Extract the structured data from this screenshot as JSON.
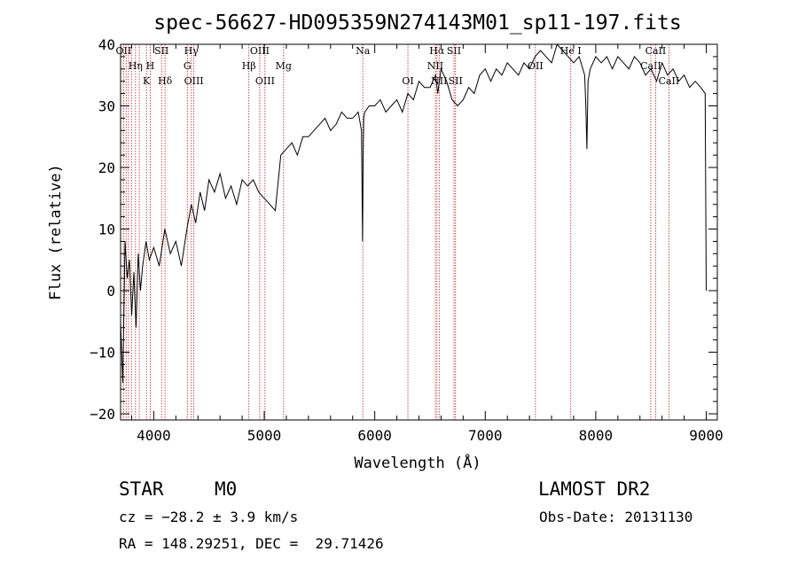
{
  "chart_data": {
    "type": "line",
    "title": "spec-56627-HD095359N274143M01_sp11-197.fits",
    "xlabel": "Wavelength (Å)",
    "ylabel": "Flux (relative)",
    "xlim": [
      3700,
      9100
    ],
    "ylim": [
      -21,
      40
    ],
    "xticks": [
      4000,
      5000,
      6000,
      7000,
      8000,
      9000
    ],
    "yticks": [
      -20,
      -10,
      0,
      10,
      20,
      30,
      40
    ],
    "xtick_labels": [
      "4000",
      "5000",
      "6000",
      "7000",
      "8000",
      "9000"
    ],
    "ytick_labels": [
      "−20",
      "−10",
      "0",
      "10",
      "20",
      "30",
      "40"
    ],
    "grid": false,
    "series": [
      {
        "color": "#000000",
        "x": [
          3700,
          3720,
          3740,
          3760,
          3780,
          3800,
          3820,
          3840,
          3860,
          3880,
          3900,
          3930,
          3960,
          4000,
          4050,
          4100,
          4150,
          4200,
          4250,
          4300,
          4340,
          4380,
          4420,
          4460,
          4500,
          4550,
          4600,
          4650,
          4700,
          4750,
          4800,
          4850,
          4900,
          4950,
          5000,
          5050,
          5100,
          5150,
          5200,
          5250,
          5300,
          5350,
          5400,
          5450,
          5500,
          5550,
          5600,
          5650,
          5700,
          5750,
          5800,
          5850,
          5880,
          5890,
          5895,
          5900,
          5910,
          5950,
          6000,
          6050,
          6100,
          6150,
          6200,
          6250,
          6300,
          6350,
          6400,
          6450,
          6500,
          6550,
          6570,
          6600,
          6650,
          6700,
          6750,
          6800,
          6850,
          6900,
          6950,
          7000,
          7050,
          7100,
          7150,
          7200,
          7250,
          7300,
          7350,
          7400,
          7450,
          7500,
          7550,
          7600,
          7650,
          7700,
          7750,
          7800,
          7850,
          7900,
          7910,
          7920,
          7930,
          7950,
          8000,
          8050,
          8100,
          8150,
          8200,
          8250,
          8300,
          8350,
          8400,
          8450,
          8500,
          8550,
          8600,
          8650,
          8700,
          8750,
          8800,
          8850,
          8900,
          8950,
          8990,
          9000
        ],
        "y": [
          -5,
          -15,
          8,
          2,
          5,
          -4,
          3,
          -6,
          6,
          0,
          4,
          8,
          5,
          7,
          4,
          10,
          6,
          8,
          4,
          10,
          14,
          11,
          16,
          13,
          18,
          16,
          19,
          15,
          17,
          14,
          18,
          17,
          18,
          16,
          15,
          14,
          13,
          22,
          23,
          24,
          22,
          25,
          25,
          26,
          27,
          28,
          26,
          27,
          29,
          28,
          28,
          29,
          26,
          8,
          22,
          28,
          29,
          30,
          30,
          31,
          29,
          30,
          31,
          29,
          32,
          31,
          34,
          33,
          33,
          35,
          32,
          36,
          34,
          31,
          30,
          31,
          33,
          32,
          35,
          36,
          34,
          36,
          35,
          37,
          36,
          35,
          37,
          36,
          38,
          39,
          38,
          37,
          40,
          39,
          38,
          37,
          38,
          35,
          30,
          23,
          34,
          36,
          38,
          37,
          38,
          36,
          38,
          37,
          36,
          38,
          37,
          35,
          36,
          34,
          37,
          35,
          36,
          34,
          35,
          33,
          34,
          33,
          32,
          0
        ]
      }
    ],
    "lines": [
      {
        "x": 3727,
        "label": "OII",
        "row": 0
      },
      {
        "x": 3750,
        "label": "",
        "row": 0
      },
      {
        "x": 3771,
        "label": "",
        "row": 0
      },
      {
        "x": 3798,
        "label": "",
        "row": 0
      },
      {
        "x": 3835,
        "label": "Hη",
        "row": 1
      },
      {
        "x": 3869,
        "label": "",
        "row": 0
      },
      {
        "x": 3934,
        "label": "K",
        "row": 2
      },
      {
        "x": 3968,
        "label": "H",
        "row": 1
      },
      {
        "x": 4071,
        "label": "SII",
        "row": 0
      },
      {
        "x": 4102,
        "label": "Hδ",
        "row": 2
      },
      {
        "x": 4304,
        "label": "G",
        "row": 1
      },
      {
        "x": 4340,
        "label": "Hγ",
        "row": 0
      },
      {
        "x": 4363,
        "label": "OIII",
        "row": 2
      },
      {
        "x": 4861,
        "label": "Hβ",
        "row": 1
      },
      {
        "x": 4959,
        "label": "OIII",
        "row": 0
      },
      {
        "x": 5007,
        "label": "OIII",
        "row": 2
      },
      {
        "x": 5175,
        "label": "Mg",
        "row": 1
      },
      {
        "x": 5892,
        "label": "Na",
        "row": 0
      },
      {
        "x": 6300,
        "label": "OI",
        "row": 2
      },
      {
        "x": 6548,
        "label": "NII",
        "row": 1
      },
      {
        "x": 6563,
        "label": "Hα",
        "row": 0
      },
      {
        "x": 6583,
        "label": "NII",
        "row": 2
      },
      {
        "x": 6717,
        "label": "SII",
        "row": 0
      },
      {
        "x": 6731,
        "label": "SII",
        "row": 2
      },
      {
        "x": 7454,
        "label": "OII",
        "row": 1
      },
      {
        "x": 7774,
        "label": "He I",
        "row": 0
      },
      {
        "x": 8498,
        "label": "CaII",
        "row": 1
      },
      {
        "x": 8542,
        "label": "CaII",
        "row": 0
      },
      {
        "x": 8662,
        "label": "CaII",
        "row": 2
      }
    ]
  },
  "info": {
    "class": "STAR",
    "subclass": "M0",
    "survey": "LAMOST DR2",
    "cz": "cz = −28.2 ± 3.9 km/s",
    "obs_date": "Obs-Date: 20131130",
    "radec": "RA = 148.29251, DEC =  29.71426"
  }
}
